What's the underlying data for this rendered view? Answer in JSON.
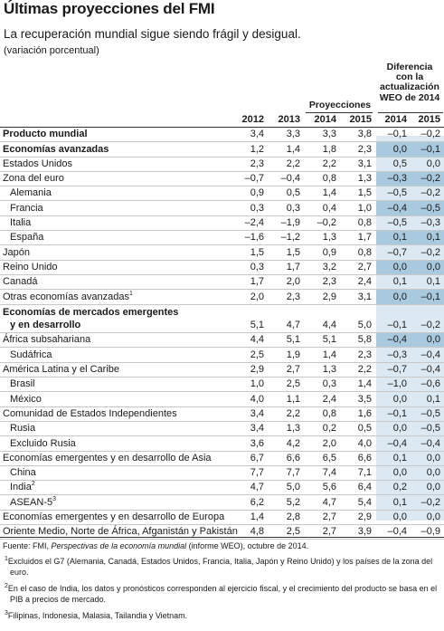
{
  "title": "Últimas proyecciones del FMI",
  "subtitle": "La recuperación mundial sigue siendo frágil y desigual.",
  "unit": "(variación porcentual)",
  "header": {
    "projections": "Proyecciones",
    "difference": [
      "Diferencia",
      "con la",
      "actualización",
      "WEO de 2014"
    ],
    "years": [
      "2012",
      "2013",
      "2014",
      "2015",
      "2014",
      "2015"
    ]
  },
  "rows": [
    {
      "label": "Producto mundial",
      "bold": true,
      "values": [
        "3,4",
        "3,3",
        "3,3",
        "3,8",
        "–0,1",
        "–0,2"
      ]
    },
    {
      "label": "Economías avanzadas",
      "bold": true,
      "values": [
        "1,2",
        "1,4",
        "1,8",
        "2,3",
        "0,0",
        "–0,1"
      ]
    },
    {
      "label": "Estados Unidos",
      "values": [
        "2,3",
        "2,2",
        "2,2",
        "3,1",
        "0,5",
        "0,0"
      ]
    },
    {
      "label": "Zona del euro",
      "values": [
        "–0,7",
        "–0,4",
        "0,8",
        "1,3",
        "–0,3",
        "–0,2"
      ]
    },
    {
      "label": "Alemania",
      "indent": true,
      "values": [
        "0,9",
        "0,5",
        "1,4",
        "1,5",
        "–0,5",
        "–0,2"
      ]
    },
    {
      "label": "Francia",
      "indent": true,
      "values": [
        "0,3",
        "0,3",
        "0,4",
        "1,0",
        "–0,4",
        "–0,5"
      ]
    },
    {
      "label": "Italia",
      "indent": true,
      "values": [
        "–2,4",
        "–1,9",
        "–0,2",
        "0,8",
        "–0,5",
        "–0,3"
      ]
    },
    {
      "label": "España",
      "indent": true,
      "values": [
        "–1,6",
        "–1,2",
        "1,3",
        "1,7",
        "0,1",
        "0,1"
      ]
    },
    {
      "label": "Japón",
      "values": [
        "1,5",
        "1,5",
        "0,9",
        "0,8",
        "–0,7",
        "–0,2"
      ]
    },
    {
      "label": "Reino Unido",
      "values": [
        "0,3",
        "1,7",
        "3,2",
        "2,7",
        "0,0",
        "0,0"
      ]
    },
    {
      "label": "Canadá",
      "values": [
        "1,7",
        "2,0",
        "2,3",
        "2,4",
        "0,1",
        "0,1"
      ]
    },
    {
      "label": "Otras economías avanzadas",
      "sup": "1",
      "values": [
        "2,0",
        "2,3",
        "2,9",
        "3,1",
        "0,0",
        "–0,1"
      ]
    },
    {
      "label": "Economías de mercados emergentes",
      "label2": "y en desarrollo",
      "bold": true,
      "values": [
        "5,1",
        "4,7",
        "4,4",
        "5,0",
        "–0,1",
        "–0,2"
      ]
    },
    {
      "label": "África subsahariana",
      "values": [
        "4,4",
        "5,1",
        "5,1",
        "5,8",
        "–0,4",
        "0,0"
      ]
    },
    {
      "label": "Sudáfrica",
      "indent": true,
      "values": [
        "2,5",
        "1,9",
        "1,4",
        "2,3",
        "–0,3",
        "–0,4"
      ]
    },
    {
      "label": "América Latina y el Caribe",
      "values": [
        "2,9",
        "2,7",
        "1,3",
        "2,2",
        "–0,7",
        "–0,4"
      ]
    },
    {
      "label": "Brasil",
      "indent": true,
      "values": [
        "1,0",
        "2,5",
        "0,3",
        "1,4",
        "–1,0",
        "–0,6"
      ]
    },
    {
      "label": "México",
      "indent": true,
      "values": [
        "4,0",
        "1,1",
        "2,4",
        "3,5",
        "0,0",
        "0,1"
      ]
    },
    {
      "label": "Comunidad de Estados Independientes",
      "values": [
        "3,4",
        "2,2",
        "0,8",
        "1,6",
        "–0,1",
        "–0,5"
      ]
    },
    {
      "label": "Rusia",
      "indent": true,
      "values": [
        "3,4",
        "1,3",
        "0,2",
        "0,5",
        "0,0",
        "–0,5"
      ]
    },
    {
      "label": "Excluido Rusia",
      "indent": true,
      "values": [
        "3,6",
        "4,2",
        "2,0",
        "4,0",
        "–0,4",
        "–0,4"
      ]
    },
    {
      "label": "Economías emergentes y en desarrollo de Asia",
      "values": [
        "6,7",
        "6,6",
        "6,5",
        "6,6",
        "0,1",
        "0,0"
      ]
    },
    {
      "label": "China",
      "indent": true,
      "values": [
        "7,7",
        "7,7",
        "7,4",
        "7,1",
        "0,0",
        "0,0"
      ]
    },
    {
      "label": "India",
      "sup": "2",
      "indent": true,
      "values": [
        "4,7",
        "5,0",
        "5,6",
        "6,4",
        "0,2",
        "0,0"
      ]
    },
    {
      "label": "ASEAN-5",
      "sup": "3",
      "indent": true,
      "values": [
        "6,2",
        "5,2",
        "4,7",
        "5,4",
        "0,1",
        "–0,2"
      ]
    },
    {
      "label": "Economías emergentes y en desarrollo de Europa",
      "values": [
        "1,4",
        "2,8",
        "2,7",
        "2,9",
        "0,0",
        "0,0"
      ]
    },
    {
      "label": "Oriente Medio, Norte de África, Afganistán y Pakistán",
      "values": [
        "4,8",
        "2,5",
        "2,7",
        "3,9",
        "–0,4",
        "–0,9"
      ]
    }
  ],
  "notes": {
    "source_prefix": "Fuente: FMI, ",
    "source_italic": "Perspectivas de la economía mundial",
    "source_suffix": " (informe WEO), octubre de 2014.",
    "footnotes": [
      {
        "mark": "1",
        "text": "Excluidos el G7 (Alemania, Canadá, Estados Unidos, Francia, Italia, Japón y Reino Unido) y los países de la zona del euro."
      },
      {
        "mark": "2",
        "text": "En el caso de India, los datos y pronósticos corresponden al ejercicio fiscal, y el crecimiento del producto se basa en el PIB a precios de mercado."
      },
      {
        "mark": "3",
        "text": "Filipinas, Indonesia, Malasia, Tailandia y Vietnam."
      }
    ]
  },
  "colors": {
    "band_light": "#dce9f2",
    "band_dark": "#a9c9de"
  }
}
